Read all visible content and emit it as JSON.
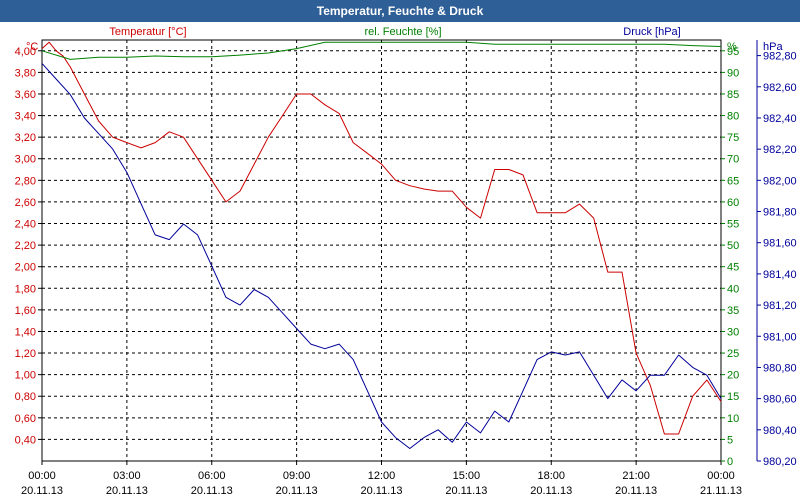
{
  "window": {
    "title": "Temperatur, Feuchte & Druck"
  },
  "chart_data": {
    "type": "line",
    "title": "Temperatur, Feuchte & Druck",
    "grid": true,
    "x_ticks": [
      {
        "hours": 0,
        "time": "00:00",
        "date": "20.11.13"
      },
      {
        "hours": 3,
        "time": "03:00",
        "date": "20.11.13"
      },
      {
        "hours": 6,
        "time": "06:00",
        "date": "20.11.13"
      },
      {
        "hours": 9,
        "time": "09:00",
        "date": "20.11.13"
      },
      {
        "hours": 12,
        "time": "12:00",
        "date": "20.11.13"
      },
      {
        "hours": 15,
        "time": "15:00",
        "date": "20.11.13"
      },
      {
        "hours": 18,
        "time": "18:00",
        "date": "20.11.13"
      },
      {
        "hours": 21,
        "time": "21:00",
        "date": "20.11.13"
      },
      {
        "hours": 24,
        "time": "00:00",
        "date": "21.11.13"
      }
    ],
    "axes": {
      "temperature": {
        "unit": "°C",
        "label": "Temperatur [°C]",
        "color": "#cc0000",
        "ylim": [
          0.2,
          4.1
        ],
        "ticks": [
          "4,00",
          "3,80",
          "3,60",
          "3,40",
          "3,20",
          "3,00",
          "2,80",
          "2,60",
          "2,40",
          "2,20",
          "2,00",
          "1,80",
          "1,60",
          "1,40",
          "1,20",
          "1,00",
          "0,80",
          "0,60",
          "0,40"
        ]
      },
      "humidity": {
        "unit": "%",
        "label": "rel. Feuchte [%]",
        "color": "#008000",
        "ylim": [
          0,
          97.5
        ],
        "ticks": [
          "95",
          "90",
          "85",
          "80",
          "75",
          "70",
          "65",
          "60",
          "55",
          "50",
          "45",
          "40",
          "35",
          "30",
          "25",
          "20",
          "15",
          "10",
          "5",
          "0"
        ]
      },
      "pressure": {
        "unit": "hPa",
        "label": "Druck [hPa]",
        "color": "#000099",
        "ylim": [
          980.2,
          982.9
        ],
        "ticks": [
          "982,80",
          "982,60",
          "982,40",
          "982,20",
          "982,00",
          "981,80",
          "981,60",
          "981,40",
          "981,20",
          "981,00",
          "980,80",
          "980,60",
          "980,40",
          "980,20"
        ]
      }
    },
    "series": [
      {
        "name": "Temperatur [°C]",
        "axis": "temperature",
        "color": "#cc0000",
        "x": [
          0,
          0.25,
          0.5,
          0.75,
          1,
          1.5,
          2,
          2.5,
          3,
          3.5,
          4,
          4.5,
          5,
          5.5,
          6,
          6.5,
          7,
          7.5,
          8,
          8.5,
          9,
          9.5,
          10,
          10.5,
          11,
          11.5,
          12,
          12.5,
          13,
          13.5,
          14,
          14.5,
          15,
          15.5,
          16,
          16.5,
          17,
          17.5,
          18,
          18.5,
          19,
          19.5,
          20,
          20.5,
          21,
          21.5,
          22,
          22.5,
          23,
          23.5,
          24
        ],
        "values": [
          4.02,
          4.08,
          4.0,
          3.95,
          3.85,
          3.6,
          3.35,
          3.2,
          3.15,
          3.1,
          3.15,
          3.25,
          3.2,
          3.0,
          2.8,
          2.6,
          2.7,
          2.95,
          3.2,
          3.4,
          3.6,
          3.6,
          3.5,
          3.42,
          3.15,
          3.05,
          2.95,
          2.8,
          2.75,
          2.72,
          2.7,
          2.7,
          2.55,
          2.45,
          2.9,
          2.9,
          2.85,
          2.5,
          2.5,
          2.5,
          2.58,
          2.45,
          1.95,
          1.95,
          1.2,
          0.9,
          0.45,
          0.45,
          0.8,
          0.95,
          0.75
        ]
      },
      {
        "name": "rel. Feuchte [%]",
        "axis": "humidity",
        "color": "#008000",
        "x": [
          0,
          1,
          2,
          3,
          4,
          5,
          6,
          7,
          8,
          9,
          10,
          11,
          12,
          13,
          14,
          15,
          16,
          17,
          18,
          19,
          20,
          21,
          22,
          23,
          24
        ],
        "values": [
          95,
          93,
          93.5,
          93.5,
          93.8,
          93.6,
          93.6,
          94,
          94.5,
          95.5,
          97,
          97,
          97,
          97,
          97,
          97,
          96.5,
          96.5,
          96.5,
          96.5,
          96.5,
          96.5,
          96.5,
          96.2,
          96
        ]
      },
      {
        "name": "Druck [hPa]",
        "axis": "pressure",
        "color": "#000099",
        "x": [
          0,
          0.5,
          1,
          1.5,
          2,
          2.5,
          3,
          3.5,
          4,
          4.5,
          5,
          5.5,
          6,
          6.5,
          7,
          7.5,
          8,
          8.5,
          9,
          9.5,
          10,
          10.5,
          11,
          11.5,
          12,
          12.5,
          13,
          13.5,
          14,
          14.5,
          15,
          15.5,
          16,
          16.5,
          17,
          17.5,
          18,
          18.5,
          19,
          19.5,
          20,
          20.5,
          21,
          21.5,
          22,
          22.5,
          23,
          23.5,
          24
        ],
        "values": [
          982.75,
          982.65,
          982.55,
          982.4,
          982.3,
          982.2,
          982.05,
          981.85,
          981.65,
          981.62,
          981.72,
          981.65,
          981.45,
          981.25,
          981.2,
          981.3,
          981.25,
          981.15,
          981.05,
          980.95,
          980.92,
          980.95,
          980.85,
          980.65,
          980.45,
          980.35,
          980.28,
          980.35,
          980.4,
          980.32,
          980.45,
          980.38,
          980.52,
          980.45,
          980.65,
          980.85,
          980.9,
          980.88,
          980.9,
          980.75,
          980.6,
          980.72,
          980.65,
          980.75,
          980.75,
          980.88,
          980.8,
          980.75,
          980.6
        ]
      }
    ]
  }
}
